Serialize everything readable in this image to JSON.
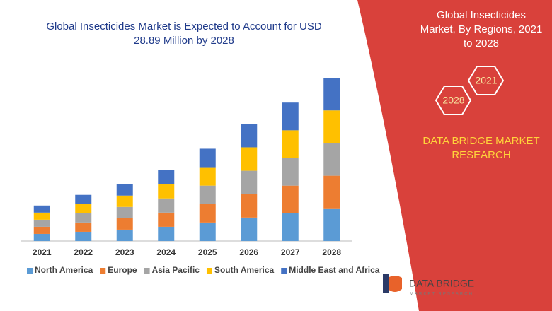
{
  "chart_data": {
    "type": "stacked-bar",
    "title": "Global Insecticides Market is Expected to Account for USD 28.89 Million by 2028",
    "categories": [
      "2021",
      "2022",
      "2023",
      "2024",
      "2025",
      "2026",
      "2027",
      "2028"
    ],
    "series": [
      {
        "name": "North America",
        "color": "#5b9bd5",
        "values": [
          10,
          13,
          16,
          20,
          26,
          33,
          39,
          46
        ]
      },
      {
        "name": "Europe",
        "color": "#ed7d31",
        "values": [
          10,
          13,
          16,
          20,
          26,
          33,
          39,
          46
        ]
      },
      {
        "name": "Asia Pacific",
        "color": "#a5a5a5",
        "values": [
          10,
          13,
          16,
          20,
          26,
          33,
          39,
          46
        ]
      },
      {
        "name": "South America",
        "color": "#ffc000",
        "values": [
          10,
          13,
          16,
          20,
          26,
          33,
          39,
          46
        ]
      },
      {
        "name": "Middle East and Africa",
        "color": "#4472c4",
        "values": [
          10,
          13,
          16,
          20,
          26,
          33,
          39,
          46
        ]
      }
    ],
    "ylim": [
      0,
      240
    ],
    "legend": "bottom"
  },
  "panel": {
    "title": "Global Insecticides Market, By Regions, 2021 to 2028",
    "hexagons": [
      "2021",
      "2028"
    ],
    "brand": "DATA BRIDGE MARKET RESEARCH"
  },
  "logo": {
    "name": "DATA BRIDGE",
    "tagline": "MARKET RESEARCH"
  }
}
